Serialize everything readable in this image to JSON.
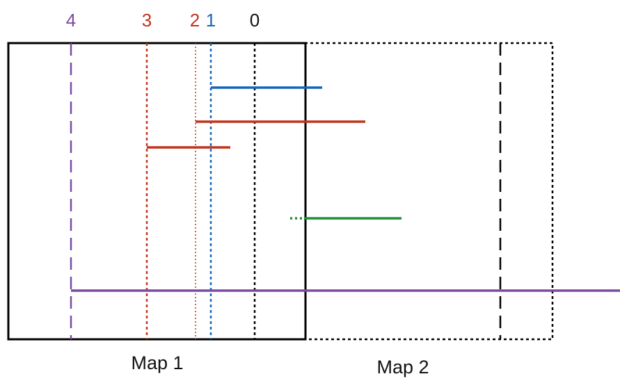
{
  "colors": {
    "black": "#000000",
    "purple": "#7a4aa1",
    "red": "#c0341d",
    "blue": "#1565b8",
    "green": "#1f8f3a"
  },
  "column_labels": {
    "c4": "4",
    "c3": "3",
    "c2": "2",
    "c1": "1",
    "c0": "0"
  },
  "map_labels": {
    "map1": "Map 1",
    "map2": "Map 2"
  }
}
